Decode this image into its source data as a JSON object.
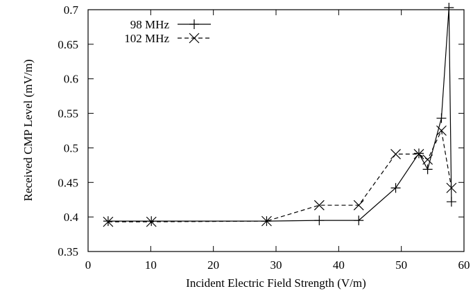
{
  "chart_data": {
    "type": "line",
    "title": "",
    "xlabel": "Incident Electric Field Strength (V/m)",
    "ylabel": "Received CMP Level (mV/m)",
    "xlim": [
      0,
      60
    ],
    "ylim": [
      0.35,
      0.7
    ],
    "xticks": [
      0,
      10,
      20,
      30,
      40,
      50,
      60
    ],
    "yticks": [
      0.35,
      0.4,
      0.45,
      0.5,
      0.55,
      0.6,
      0.65,
      0.7
    ],
    "xtick_labels": [
      "0",
      "10",
      "20",
      "30",
      "40",
      "50",
      "60"
    ],
    "ytick_labels": [
      "0.35",
      "0.4",
      "0.45",
      "0.5",
      "0.55",
      "0.6",
      "0.65",
      "0.7"
    ],
    "grid": false,
    "legend_position": "top-left",
    "series": [
      {
        "name": "98 MHz",
        "line_style": "solid",
        "marker": "plus",
        "color": "#000000",
        "x": [
          3.2,
          10.1,
          28.5,
          36.9,
          43.2,
          49.1,
          52.8,
          54.2,
          56.4,
          57.6,
          58.0
        ],
        "y": [
          0.394,
          0.394,
          0.394,
          0.395,
          0.395,
          0.442,
          0.492,
          0.469,
          0.543,
          0.703,
          0.422
        ]
      },
      {
        "name": "102 MHz",
        "line_style": "dashed",
        "marker": "cross",
        "color": "#000000",
        "x": [
          3.2,
          10.1,
          28.5,
          36.9,
          43.2,
          49.1,
          52.8,
          54.2,
          56.4,
          58.0
        ],
        "y": [
          0.393,
          0.393,
          0.394,
          0.417,
          0.417,
          0.491,
          0.491,
          0.483,
          0.525,
          0.442
        ]
      }
    ]
  }
}
